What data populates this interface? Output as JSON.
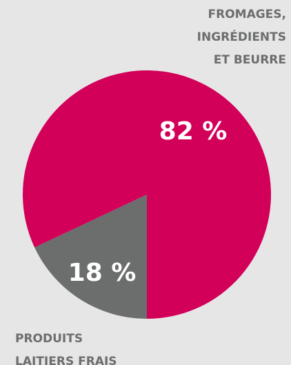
{
  "chart_data": {
    "type": "pie",
    "categories": [
      [
        "FROMAGES,",
        "INGRÉDIENTS",
        "ET BEURRE"
      ],
      [
        "PRODUITS",
        "LAITIERS FRAIS"
      ]
    ],
    "values": [
      82,
      18
    ],
    "value_labels": [
      "82 %",
      "18 %"
    ],
    "colors": [
      "#d3005a",
      "#6c6d6d"
    ]
  }
}
